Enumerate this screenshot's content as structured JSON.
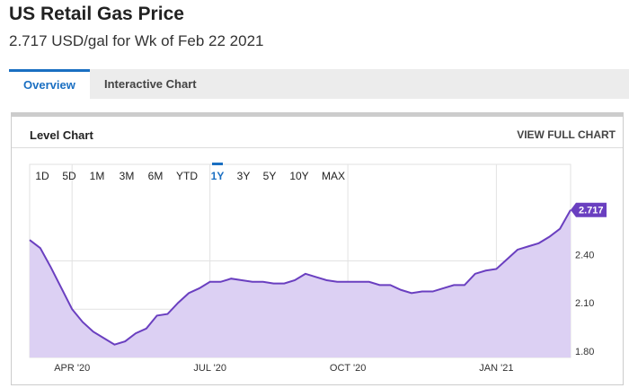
{
  "header": {
    "title": "US Retail Gas Price",
    "subtitle": "2.717 USD/gal for Wk of Feb 22 2021"
  },
  "tabs": [
    "Overview",
    "Interactive Chart"
  ],
  "active_tab": "Overview",
  "panel": {
    "title": "Level Chart",
    "link": "VIEW FULL CHART"
  },
  "ranges": [
    "1D",
    "5D",
    "1M",
    "3M",
    "6M",
    "YTD",
    "1Y",
    "3Y",
    "5Y",
    "10Y",
    "MAX"
  ],
  "active_range": "1Y",
  "chart_data": {
    "type": "area",
    "color": "#6a3fc0",
    "fill": "#dcd0f3",
    "categories": [
      null,
      null,
      null,
      null,
      "APR '20",
      null,
      null,
      null,
      null,
      null,
      null,
      null,
      null,
      null,
      null,
      null,
      null,
      "JUL '20",
      null,
      null,
      null,
      null,
      null,
      null,
      null,
      null,
      null,
      null,
      null,
      null,
      "OCT '20",
      null,
      null,
      null,
      null,
      null,
      null,
      null,
      null,
      null,
      null,
      null,
      null,
      null,
      "JAN '21",
      null,
      null,
      null,
      null,
      null,
      null,
      null
    ],
    "values": [
      2.53,
      2.48,
      2.36,
      2.23,
      2.1,
      2.02,
      1.96,
      1.92,
      1.88,
      1.9,
      1.95,
      1.98,
      2.06,
      2.07,
      2.14,
      2.2,
      2.23,
      2.27,
      2.27,
      2.29,
      2.28,
      2.27,
      2.27,
      2.26,
      2.26,
      2.28,
      2.32,
      2.3,
      2.28,
      2.27,
      2.27,
      2.27,
      2.27,
      2.25,
      2.25,
      2.22,
      2.2,
      2.21,
      2.21,
      2.23,
      2.25,
      2.25,
      2.32,
      2.34,
      2.35,
      2.41,
      2.47,
      2.49,
      2.51,
      2.55,
      2.6,
      2.717
    ],
    "ylim": [
      1.8,
      3.0
    ],
    "yticks": [
      {
        "value": 1.8,
        "label": "1.80"
      },
      {
        "value": 2.1,
        "label": "2.10"
      },
      {
        "value": 2.4,
        "label": "2.40"
      }
    ],
    "grid": true
  }
}
